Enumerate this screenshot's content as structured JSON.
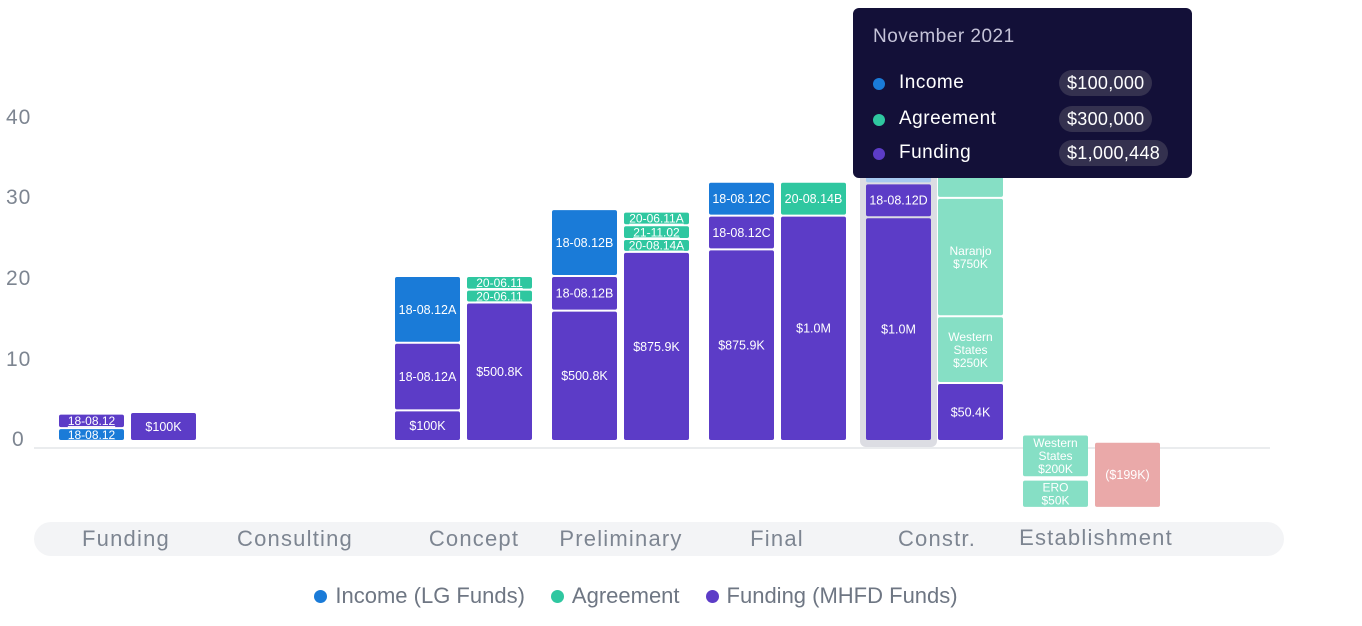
{
  "chart_data": {
    "type": "bar",
    "y_ticks": [
      "40",
      "30",
      "20",
      "10",
      "0"
    ],
    "categories": [
      "Funding",
      "Consulting",
      "Concept",
      "Preliminary",
      "Final",
      "Constr.",
      "Establishment"
    ],
    "highlighted_category": "Constr.",
    "series_colors": {
      "income": "#1a7bd8",
      "agreement": "#2fc7a0",
      "funding": "#5c3cc7",
      "agreement_light": "#86dfc5",
      "income_light": "#a7c9f0",
      "negative": "#eaa9a9"
    },
    "columns": [
      {
        "category": "Funding",
        "segments": [
          {
            "series": "income",
            "y0": 0,
            "y1": 1.6,
            "label": "18-08.12",
            "underline": true
          },
          {
            "series": "funding",
            "y0": 1.6,
            "y1": 3.4,
            "label": "18-08.12",
            "underline": true
          }
        ]
      },
      {
        "category": "Funding",
        "segments": [
          {
            "series": "funding",
            "y0": 0,
            "y1": 3.6,
            "label": "$100K"
          }
        ]
      },
      {
        "category": "Concept",
        "segments": [
          {
            "series": "funding",
            "y0": 0,
            "y1": 3.8,
            "label": "$100K"
          },
          {
            "series": "funding",
            "y0": 3.8,
            "y1": 12.2,
            "label": "18-08.12A"
          },
          {
            "series": "income",
            "y0": 12.2,
            "y1": 20.5,
            "label": "18-08.12A"
          }
        ]
      },
      {
        "category": "Concept",
        "segments": [
          {
            "series": "funding",
            "y0": 0,
            "y1": 17.2,
            "label": "$500.8K"
          },
          {
            "series": "agreement",
            "y0": 17.2,
            "y1": 18.8,
            "label": "20-06.11",
            "underline": true
          },
          {
            "series": "agreement",
            "y0": 18.8,
            "y1": 20.5,
            "label": "20-06.11",
            "underline": true
          }
        ]
      },
      {
        "category": "Preliminary",
        "segments": [
          {
            "series": "funding",
            "y0": 0,
            "y1": 16.2,
            "label": "$500.8K"
          },
          {
            "series": "funding",
            "y0": 16.2,
            "y1": 20.5,
            "label": "18-08.12B"
          },
          {
            "series": "income",
            "y0": 20.5,
            "y1": 28.8,
            "label": "18-08.12B"
          }
        ]
      },
      {
        "category": "Preliminary",
        "segments": [
          {
            "series": "funding",
            "y0": 0,
            "y1": 23.5,
            "label": "$875.9K"
          },
          {
            "series": "agreement",
            "y0": 23.5,
            "y1": 25.1,
            "label": "20-08.14A",
            "underline": true
          },
          {
            "series": "agreement",
            "y0": 25.1,
            "y1": 26.8,
            "label": "21-11.02",
            "underline": true
          },
          {
            "series": "agreement",
            "y0": 26.8,
            "y1": 28.5,
            "label": "20-06.11A",
            "underline": true
          }
        ]
      },
      {
        "category": "Final",
        "segments": [
          {
            "series": "funding",
            "y0": 0,
            "y1": 23.8,
            "label": "$875.9K"
          },
          {
            "series": "funding",
            "y0": 23.8,
            "y1": 28.0,
            "label": "18-08.12C"
          },
          {
            "series": "income",
            "y0": 28.0,
            "y1": 32.2,
            "label": "18-08.12C"
          }
        ]
      },
      {
        "category": "Final",
        "segments": [
          {
            "series": "funding",
            "y0": 0,
            "y1": 28.0,
            "label": "$1.0M"
          },
          {
            "series": "agreement",
            "y0": 28.0,
            "y1": 32.2,
            "label": "20-08.14B"
          }
        ]
      },
      {
        "category": "Constr.",
        "highlight": true,
        "segments": [
          {
            "series": "funding",
            "y0": 0,
            "y1": 27.8,
            "label": "$1.0M"
          },
          {
            "series": "funding",
            "y0": 27.8,
            "y1": 32.0,
            "label": "18-08.12D"
          },
          {
            "series": "income_light",
            "y0": 32.0,
            "y1": 33.6,
            "label": ""
          }
        ]
      },
      {
        "category": "Constr.",
        "segments": [
          {
            "series": "funding",
            "y0": 0,
            "y1": 7.2,
            "label": "$50.4K"
          },
          {
            "series": "agreement_light",
            "y0": 7.2,
            "y1": 15.5,
            "label": "Western\nStates\n$250K"
          },
          {
            "series": "agreement_light",
            "y0": 15.5,
            "y1": 30.2,
            "label": "Naranjo\n$750K"
          },
          {
            "series": "agreement_light",
            "y0": 30.2,
            "y1": 33.6,
            "label": ""
          }
        ]
      },
      {
        "category": "Establishment",
        "segments": [
          {
            "series": "agreement_light",
            "y0": -4.5,
            "y1": 0.8,
            "label": "Western\nStates\n$200K"
          },
          {
            "series": "agreement_light",
            "y0": -8.3,
            "y1": -4.8,
            "label": "ERO\n$50K"
          }
        ]
      },
      {
        "category": "Establishment",
        "segments": [
          {
            "series": "negative",
            "y0": -8.3,
            "y1": -0.1,
            "label": "($199K)"
          }
        ]
      }
    ]
  },
  "legend": [
    {
      "label": "Income (LG Funds)",
      "color": "#1a7bd8"
    },
    {
      "label": "Agreement",
      "color": "#2fc7a0"
    },
    {
      "label": "Funding (MHFD Funds)",
      "color": "#5c3cc7"
    }
  ],
  "tooltip": {
    "title": "November 2021",
    "rows": [
      {
        "name": "Income",
        "value": "$100,000",
        "color": "#1a7bd8"
      },
      {
        "name": "Agreement",
        "value": "$300,000",
        "color": "#2fc7a0"
      },
      {
        "name": "Funding",
        "value": "$1,000,448",
        "color": "#5c3cc7"
      }
    ]
  }
}
